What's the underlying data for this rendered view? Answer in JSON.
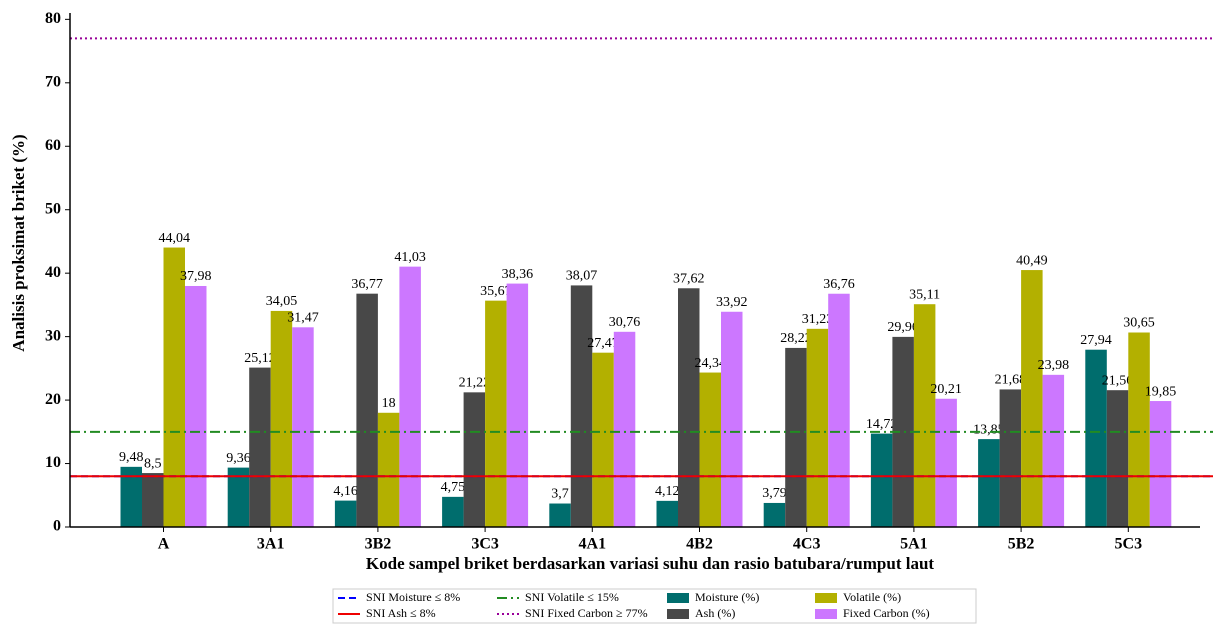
{
  "chart_data": {
    "type": "bar",
    "xlabel": "Kode sampel briket berdasarkan variasi suhu dan rasio batubara/rumput laut",
    "ylabel": "Analisis proksimat briket (%)",
    "categories": [
      "A",
      "3A1",
      "3B2",
      "3C3",
      "4A1",
      "4B2",
      "4C3",
      "5A1",
      "5B2",
      "5C3"
    ],
    "series": [
      {
        "name": "Moisture (%)",
        "color": "#006d6d",
        "values": [
          9.48,
          9.36,
          4.16,
          4.75,
          3.7,
          4.12,
          3.79,
          14.72,
          13.85,
          27.94
        ],
        "value_labels": [
          "9,48",
          "9,36",
          "4,16",
          "4,75",
          "3,7",
          "4,12",
          "3,79",
          "14,72",
          "13,85",
          "27,94"
        ]
      },
      {
        "name": "Ash (%)",
        "color": "#484848",
        "values": [
          8.5,
          25.12,
          36.77,
          21.22,
          38.07,
          37.62,
          28.22,
          29.96,
          21.68,
          21.56
        ],
        "value_labels": [
          "8,5",
          "25,12",
          "36,77",
          "21,22",
          "38,07",
          "37,62",
          "28,22",
          "29,96",
          "21,68",
          "21,56"
        ]
      },
      {
        "name": "Volatile (%)",
        "color": "#b3b000",
        "values": [
          44.04,
          34.05,
          18,
          35.67,
          27.47,
          24.34,
          31.23,
          35.11,
          40.49,
          30.65
        ],
        "value_labels": [
          "44,04",
          "34,05",
          "18",
          "35,67",
          "27,47",
          "24,34",
          "31,23",
          "35,11",
          "40,49",
          "30,65"
        ]
      },
      {
        "name": "Fixed Carbon (%)",
        "color": "#cc77ff",
        "values": [
          37.98,
          31.47,
          41.03,
          38.36,
          30.76,
          33.92,
          36.76,
          20.21,
          23.98,
          19.85
        ],
        "value_labels": [
          "37,98",
          "31,47",
          "41,03",
          "38,36",
          "30,76",
          "33,92",
          "36,76",
          "20,21",
          "23,98",
          "19,85"
        ]
      }
    ],
    "reference_lines": [
      {
        "name": "SNI  Moisture ≤ 8%",
        "value": 8,
        "color": "#0000ff",
        "style": "dashed"
      },
      {
        "name": "SNI  Ash ≤ 8%",
        "value": 8,
        "color": "#ee0000",
        "style": "solid"
      },
      {
        "name": "SNI Volatile ≤ 15%",
        "value": 15,
        "color": "#228b22",
        "style": "dashdot"
      },
      {
        "name": "SNI  Fixed Carbon ≥ 77%",
        "value": 77,
        "color": "#990099",
        "style": "dotted"
      }
    ],
    "ylim": [
      0,
      81
    ],
    "yticks": [
      0,
      10,
      20,
      30,
      40,
      50,
      60,
      70,
      80
    ]
  }
}
